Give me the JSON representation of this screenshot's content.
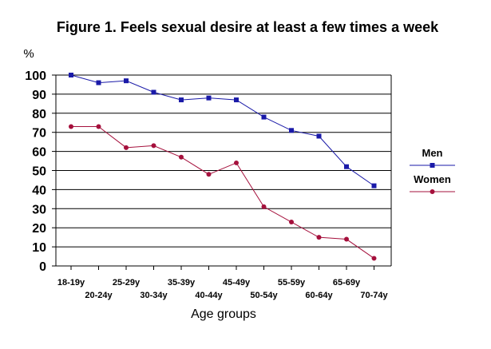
{
  "chart_data": {
    "type": "line",
    "title": "Figure 1. Feels sexual desire at least a few times a week",
    "ylabel": "%",
    "xlabel": "Age groups",
    "categories": [
      "18-19y",
      "20-24y",
      "25-29y",
      "30-34y",
      "35-39y",
      "40-44y",
      "45-49y",
      "50-54y",
      "55-59y",
      "60-64y",
      "65-69y",
      "70-74y"
    ],
    "ylim": [
      0,
      100
    ],
    "yticks": [
      0,
      10,
      20,
      30,
      40,
      50,
      60,
      70,
      80,
      90,
      100
    ],
    "grid": true,
    "legend_position": "right",
    "series": [
      {
        "name": "Men",
        "color": "#1a1aa8",
        "marker": "square",
        "values": [
          100,
          96,
          97,
          91,
          87,
          88,
          87,
          78,
          71,
          68,
          52,
          42
        ]
      },
      {
        "name": "Women",
        "color": "#a5103c",
        "marker": "circle",
        "values": [
          73,
          73,
          62,
          63,
          57,
          48,
          54,
          31,
          23,
          15,
          14,
          4
        ]
      }
    ]
  }
}
